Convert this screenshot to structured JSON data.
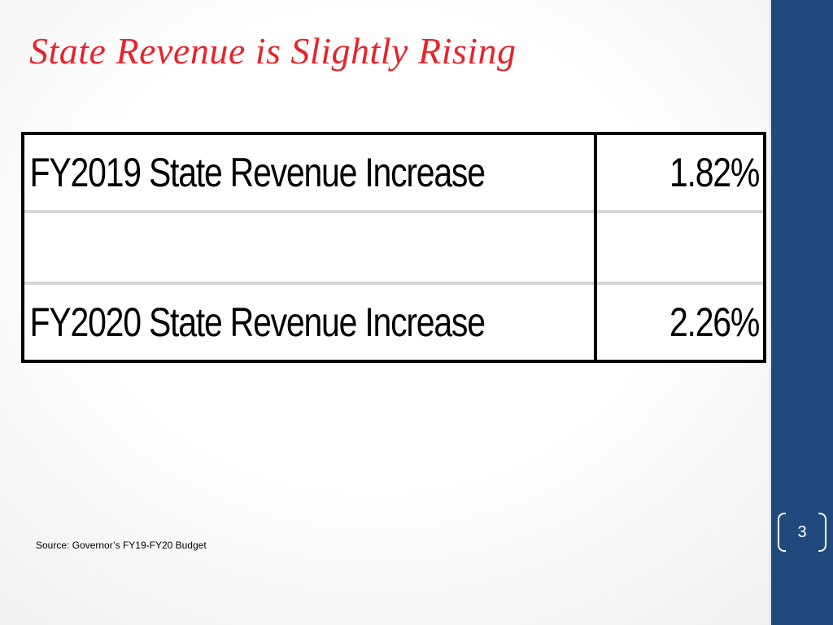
{
  "slide": {
    "title": "State Revenue is Slightly Rising",
    "page_number": "3"
  },
  "table": {
    "rows": [
      {
        "label": "FY2019 State Revenue Increase",
        "value": "1.82%"
      },
      {
        "label": "",
        "value": ""
      },
      {
        "label": "FY2020 State Revenue Increase",
        "value": "2.26%"
      }
    ]
  },
  "source": "Source:  Governor’s FY19-FY20 Budget",
  "colors": {
    "title": "#e8232a",
    "sidebar": "#1f497d",
    "table_border": "#000000",
    "row_divider": "#d6d6d6"
  }
}
